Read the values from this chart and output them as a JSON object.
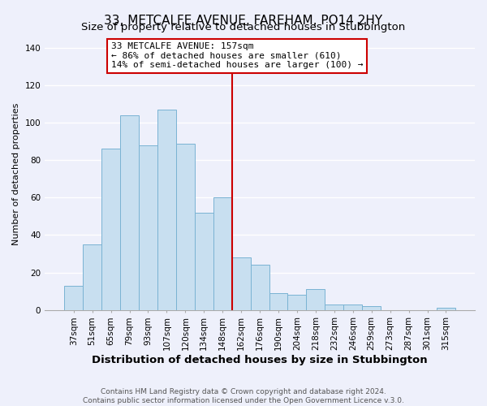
{
  "title": "33, METCALFE AVENUE, FAREHAM, PO14 2HY",
  "subtitle": "Size of property relative to detached houses in Stubbington",
  "xlabel": "Distribution of detached houses by size in Stubbington",
  "ylabel": "Number of detached properties",
  "bar_labels": [
    "37sqm",
    "51sqm",
    "65sqm",
    "79sqm",
    "93sqm",
    "107sqm",
    "120sqm",
    "134sqm",
    "148sqm",
    "162sqm",
    "176sqm",
    "190sqm",
    "204sqm",
    "218sqm",
    "232sqm",
    "246sqm",
    "259sqm",
    "273sqm",
    "287sqm",
    "301sqm",
    "315sqm"
  ],
  "bar_heights": [
    13,
    35,
    86,
    104,
    88,
    107,
    89,
    52,
    60,
    28,
    24,
    9,
    8,
    11,
    3,
    3,
    2,
    0,
    0,
    0,
    1
  ],
  "bar_color": "#c8dff0",
  "bar_edge_color": "#7ab3d3",
  "vline_color": "#cc0000",
  "annotation_title": "33 METCALFE AVENUE: 157sqm",
  "annotation_line1": "← 86% of detached houses are smaller (610)",
  "annotation_line2": "14% of semi-detached houses are larger (100) →",
  "annotation_box_color": "#ffffff",
  "annotation_box_edge": "#cc0000",
  "ylim": [
    0,
    145
  ],
  "yticks": [
    0,
    20,
    40,
    60,
    80,
    100,
    120,
    140
  ],
  "footer1": "Contains HM Land Registry data © Crown copyright and database right 2024.",
  "footer2": "Contains public sector information licensed under the Open Government Licence v.3.0.",
  "background_color": "#eef0fb",
  "plot_bg_color": "#eef0fb",
  "grid_color": "#ffffff",
  "title_fontsize": 11,
  "xlabel_fontsize": 9.5,
  "ylabel_fontsize": 8,
  "tick_fontsize": 7.5,
  "annotation_fontsize": 8,
  "footer_fontsize": 6.5
}
